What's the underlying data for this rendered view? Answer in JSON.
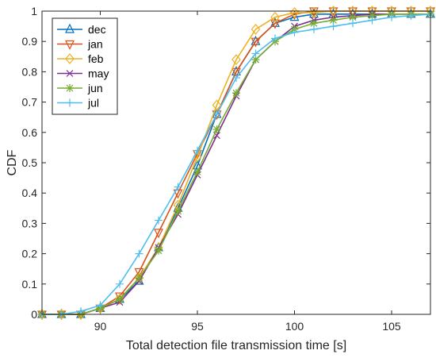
{
  "chart_data": {
    "type": "line",
    "title": "",
    "xlabel": "Total detection file transmission time [s]",
    "ylabel": "CDF",
    "xlim": [
      87,
      107
    ],
    "ylim": [
      0,
      1
    ],
    "xticks": [
      90,
      95,
      100,
      105
    ],
    "yticks": [
      0,
      0.1,
      0.2,
      0.3,
      0.4,
      0.5,
      0.6,
      0.7,
      0.8,
      0.9,
      1
    ],
    "ytick_labels": [
      "0",
      "0.1",
      "0.2",
      "0.3",
      "0.4",
      "0.5",
      "0.6",
      "0.7",
      "0.8",
      "0.9",
      "1"
    ],
    "grid": false,
    "legend_position": "top-left",
    "x": [
      87,
      88,
      89,
      90,
      91,
      92,
      93,
      94,
      95,
      96,
      97,
      98,
      99,
      100,
      101,
      102,
      103,
      104,
      105,
      106,
      107
    ],
    "series": [
      {
        "name": "dec",
        "color": "#0072BD",
        "marker": "triangle-up",
        "values": [
          0,
          0,
          0,
          0.02,
          0.05,
          0.11,
          0.22,
          0.35,
          0.49,
          0.66,
          0.8,
          0.9,
          0.96,
          0.98,
          0.99,
          0.99,
          0.99,
          0.99,
          0.99,
          0.99,
          0.99
        ]
      },
      {
        "name": "jan",
        "color": "#D95319",
        "marker": "triangle-down",
        "values": [
          0,
          0,
          0,
          0.02,
          0.06,
          0.14,
          0.27,
          0.4,
          0.53,
          0.66,
          0.8,
          0.9,
          0.96,
          0.99,
          1.0,
          1.0,
          1.0,
          1.0,
          1.0,
          1.0,
          1.0
        ]
      },
      {
        "name": "feb",
        "color": "#EDB120",
        "marker": "diamond",
        "values": [
          0,
          0,
          0,
          0.02,
          0.05,
          0.12,
          0.22,
          0.36,
          0.52,
          0.69,
          0.84,
          0.94,
          0.98,
          0.995,
          0.995,
          1.0,
          1.0,
          1.0,
          1.0,
          1.0,
          1.0
        ]
      },
      {
        "name": "may",
        "color": "#7E2F8E",
        "marker": "x",
        "values": [
          0,
          0,
          0,
          0.02,
          0.04,
          0.11,
          0.22,
          0.33,
          0.46,
          0.59,
          0.72,
          0.84,
          0.9,
          0.95,
          0.97,
          0.98,
          0.985,
          0.99,
          0.99,
          0.99,
          0.99
        ]
      },
      {
        "name": "jun",
        "color": "#77AC30",
        "marker": "asterisk",
        "values": [
          0,
          0,
          0,
          0.02,
          0.05,
          0.12,
          0.21,
          0.34,
          0.47,
          0.61,
          0.73,
          0.84,
          0.9,
          0.94,
          0.96,
          0.97,
          0.98,
          0.985,
          0.99,
          0.99,
          0.99
        ]
      },
      {
        "name": "jul",
        "color": "#4DBEEE",
        "marker": "plus",
        "values": [
          0,
          0,
          0.01,
          0.03,
          0.1,
          0.2,
          0.31,
          0.42,
          0.54,
          0.66,
          0.78,
          0.86,
          0.91,
          0.93,
          0.94,
          0.95,
          0.96,
          0.97,
          0.98,
          0.985,
          0.99
        ]
      }
    ]
  }
}
